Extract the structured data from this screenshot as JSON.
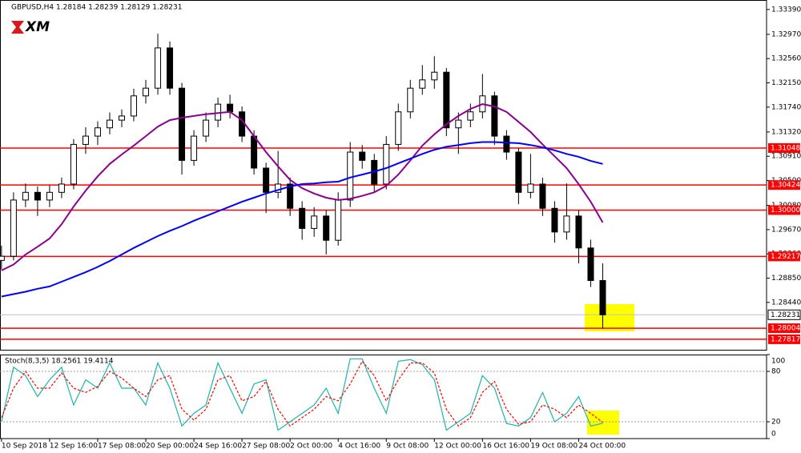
{
  "chart_data": {
    "type": "candlestick",
    "title": "GBPUSD,H4  1.28184 1.28239 1.28129 1.28231",
    "logo": "XM",
    "xlim": [
      -0.5,
      254.5
    ],
    "xticks": [
      {
        "value": 0,
        "label": "10 Sep 2018"
      },
      {
        "value": 16,
        "label": "12 Sep 16:00"
      },
      {
        "value": 32,
        "label": "17 Sep 08:00"
      },
      {
        "value": 48,
        "label": "20 Sep 00:00"
      },
      {
        "value": 64,
        "label": "24 Sep 16:00"
      },
      {
        "value": 80,
        "label": "27 Sep 08:00"
      },
      {
        "value": 96,
        "label": "2 Oct 00:00"
      },
      {
        "value": 112,
        "label": "4 Oct 16:00"
      },
      {
        "value": 128,
        "label": "9 Oct 08:00"
      },
      {
        "value": 144,
        "label": "12 Oct 00:00"
      },
      {
        "value": 160,
        "label": "16 Oct 16:00"
      },
      {
        "value": 176,
        "label": "19 Oct 08:00"
      },
      {
        "value": 192,
        "label": "24 Oct 00:00"
      }
    ],
    "ylim": [
      1.2764,
      1.3355
    ],
    "yticks": [
      {
        "value": 1.3339,
        "label": "1.33390"
      },
      {
        "value": 1.3297,
        "label": "1.32970"
      },
      {
        "value": 1.3256,
        "label": "1.32560"
      },
      {
        "value": 1.3215,
        "label": "1.32150"
      },
      {
        "value": 1.3174,
        "label": "1.31740"
      },
      {
        "value": 1.3132,
        "label": "1.31320"
      },
      {
        "value": 1.3091,
        "label": "1.30910"
      },
      {
        "value": 1.305,
        "label": "1.30500"
      },
      {
        "value": 1.3008,
        "label": "1.30080"
      },
      {
        "value": 1.2967,
        "label": "1.29670"
      },
      {
        "value": 1.2926,
        "label": "1.29260"
      },
      {
        "value": 1.2885,
        "label": "1.28850"
      },
      {
        "value": 1.2844,
        "label": "1.28440"
      }
    ],
    "x": [
      0,
      4,
      8,
      12,
      16,
      20,
      24,
      28,
      32,
      36,
      40,
      44,
      48,
      52,
      56,
      60,
      64,
      68,
      72,
      76,
      80,
      84,
      88,
      92,
      96,
      100,
      104,
      108,
      112,
      116,
      120,
      124,
      128,
      132,
      136,
      140,
      144,
      148,
      152,
      156,
      160,
      164,
      168,
      172,
      176,
      180,
      184,
      188,
      192,
      196,
      200
    ],
    "candles": [
      [
        1.2915,
        1.294,
        1.29,
        1.2922
      ],
      [
        1.2922,
        1.303,
        1.2915,
        1.3017
      ],
      [
        1.3017,
        1.3045,
        1.3005,
        1.303
      ],
      [
        1.303,
        1.304,
        1.299,
        1.3017
      ],
      [
        1.3017,
        1.3042,
        1.3005,
        1.303
      ],
      [
        1.303,
        1.3055,
        1.302,
        1.3044
      ],
      [
        1.3044,
        1.312,
        1.3035,
        1.3111
      ],
      [
        1.3111,
        1.314,
        1.3095,
        1.3125
      ],
      [
        1.3125,
        1.315,
        1.311,
        1.3139
      ],
      [
        1.3139,
        1.3165,
        1.3128,
        1.3152
      ],
      [
        1.3152,
        1.317,
        1.314,
        1.3159
      ],
      [
        1.3159,
        1.3205,
        1.315,
        1.3193
      ],
      [
        1.3193,
        1.322,
        1.318,
        1.3206
      ],
      [
        1.3206,
        1.3298,
        1.3195,
        1.3274
      ],
      [
        1.3274,
        1.3285,
        1.3195,
        1.3206
      ],
      [
        1.3206,
        1.3215,
        1.306,
        1.3084
      ],
      [
        1.3084,
        1.3135,
        1.3075,
        1.3125
      ],
      [
        1.3125,
        1.3165,
        1.3115,
        1.3152
      ],
      [
        1.3152,
        1.319,
        1.314,
        1.3179
      ],
      [
        1.3179,
        1.3195,
        1.3155,
        1.3166
      ],
      [
        1.3166,
        1.3175,
        1.3115,
        1.3125
      ],
      [
        1.3125,
        1.3135,
        1.306,
        1.3071
      ],
      [
        1.3071,
        1.308,
        1.2995,
        1.303
      ],
      [
        1.303,
        1.31,
        1.302,
        1.3044
      ],
      [
        1.3044,
        1.3055,
        1.299,
        1.3003
      ],
      [
        1.3003,
        1.3015,
        1.295,
        1.2969
      ],
      [
        1.2969,
        1.3005,
        1.2955,
        1.299
      ],
      [
        1.299,
        1.3,
        1.2925,
        1.2949
      ],
      [
        1.2949,
        1.303,
        1.294,
        1.3017
      ],
      [
        1.3017,
        1.3115,
        1.3005,
        1.3098
      ],
      [
        1.3098,
        1.311,
        1.307,
        1.3084
      ],
      [
        1.3084,
        1.3095,
        1.303,
        1.3044
      ],
      [
        1.3044,
        1.3125,
        1.3035,
        1.3111
      ],
      [
        1.3111,
        1.318,
        1.31,
        1.3166
      ],
      [
        1.3166,
        1.322,
        1.3155,
        1.3206
      ],
      [
        1.3206,
        1.3245,
        1.3195,
        1.322
      ],
      [
        1.322,
        1.326,
        1.3205,
        1.3233
      ],
      [
        1.3233,
        1.324,
        1.3125,
        1.3139
      ],
      [
        1.3139,
        1.3165,
        1.3095,
        1.3152
      ],
      [
        1.3152,
        1.318,
        1.314,
        1.3166
      ],
      [
        1.3166,
        1.323,
        1.3155,
        1.3193
      ],
      [
        1.3193,
        1.32,
        1.311,
        1.3125
      ],
      [
        1.3125,
        1.3135,
        1.3085,
        1.3098
      ],
      [
        1.3098,
        1.3105,
        1.301,
        1.303
      ],
      [
        1.303,
        1.3095,
        1.302,
        1.3044
      ],
      [
        1.3044,
        1.3055,
        1.299,
        1.3003
      ],
      [
        1.3003,
        1.3015,
        1.2945,
        1.2963
      ],
      [
        1.2963,
        1.3045,
        1.295,
        1.299
      ],
      [
        1.299,
        1.3,
        1.291,
        1.2936
      ],
      [
        1.2936,
        1.295,
        1.287,
        1.2881
      ],
      [
        1.2881,
        1.291,
        1.28,
        1.2823
      ]
    ],
    "overlays": [
      {
        "color": "#8b008b",
        "values": [
          1.2898,
          1.2908,
          1.2925,
          1.2938,
          1.2952,
          1.2976,
          1.3006,
          1.3033,
          1.3057,
          1.3078,
          1.3094,
          1.3109,
          1.3125,
          1.3141,
          1.3152,
          1.3156,
          1.3159,
          1.3162,
          1.3164,
          1.3166,
          1.3152,
          1.3125,
          1.3098,
          1.3074,
          1.3051,
          1.3037,
          1.3028,
          1.3021,
          1.3017,
          1.3019,
          1.3024,
          1.303,
          1.3041,
          1.306,
          1.3084,
          1.3109,
          1.3128,
          1.3145,
          1.3159,
          1.3171,
          1.3179,
          1.3175,
          1.3166,
          1.3149,
          1.3132,
          1.3111,
          1.3091,
          1.3071,
          1.3044,
          1.3014,
          1.2979
        ]
      },
      {
        "color": "#0000ff",
        "values": [
          1.2854,
          1.2858,
          1.2862,
          1.2867,
          1.2871,
          1.2879,
          1.2887,
          1.2895,
          1.2904,
          1.2914,
          1.2925,
          1.2936,
          1.2946,
          1.2956,
          1.2965,
          1.2973,
          1.2982,
          1.299,
          1.2998,
          1.3006,
          1.3014,
          1.3021,
          1.3028,
          1.3034,
          1.304,
          1.3044,
          1.3045,
          1.3047,
          1.3048,
          1.3055,
          1.306,
          1.3065,
          1.3071,
          1.3079,
          1.3087,
          1.3095,
          1.3102,
          1.3107,
          1.311,
          1.3113,
          1.3115,
          1.3115,
          1.3114,
          1.3113,
          1.311,
          1.3106,
          1.3101,
          1.3095,
          1.309,
          1.3083,
          1.3078
        ]
      }
    ],
    "levels": [
      {
        "value": 1.31048,
        "label": "1.31048"
      },
      {
        "value": 1.30424,
        "label": "1.30424"
      },
      {
        "value": 1.3,
        "label": "1.30000"
      },
      {
        "value": 1.29217,
        "label": "1.29217"
      },
      {
        "value": 1.28004,
        "label": "1.28004"
      },
      {
        "value": 1.27817,
        "label": "1.27817"
      }
    ],
    "level_color": "#ff0000",
    "current_price": {
      "value": 1.28231,
      "label": "1.28231"
    },
    "indicator": {
      "title": "Stoch(8,3,5) 18.2561 19.4114",
      "ylim": [
        0,
        100
      ],
      "yticks": [
        100,
        80,
        20,
        0
      ],
      "series": [
        {
          "color": "#20b2aa",
          "values": [
            20,
            85,
            75,
            50,
            70,
            85,
            40,
            70,
            60,
            90,
            60,
            60,
            40,
            90,
            60,
            15,
            30,
            40,
            90,
            60,
            30,
            65,
            70,
            10,
            20,
            30,
            40,
            60,
            30,
            95,
            95,
            60,
            30,
            92,
            94,
            88,
            70,
            10,
            20,
            30,
            75,
            60,
            18,
            15,
            25,
            55,
            20,
            30,
            50,
            15,
            18.2561
          ]
        },
        {
          "color": "#ff0000",
          "dashed": true,
          "values": [
            25,
            60,
            80,
            60,
            60,
            78,
            60,
            55,
            62,
            80,
            72,
            60,
            50,
            70,
            75,
            35,
            22,
            35,
            70,
            75,
            45,
            50,
            68,
            35,
            15,
            25,
            35,
            50,
            45,
            65,
            92,
            75,
            45,
            70,
            90,
            90,
            78,
            35,
            15,
            25,
            55,
            68,
            35,
            17,
            20,
            40,
            35,
            25,
            40,
            30,
            19.4114
          ]
        }
      ]
    }
  }
}
